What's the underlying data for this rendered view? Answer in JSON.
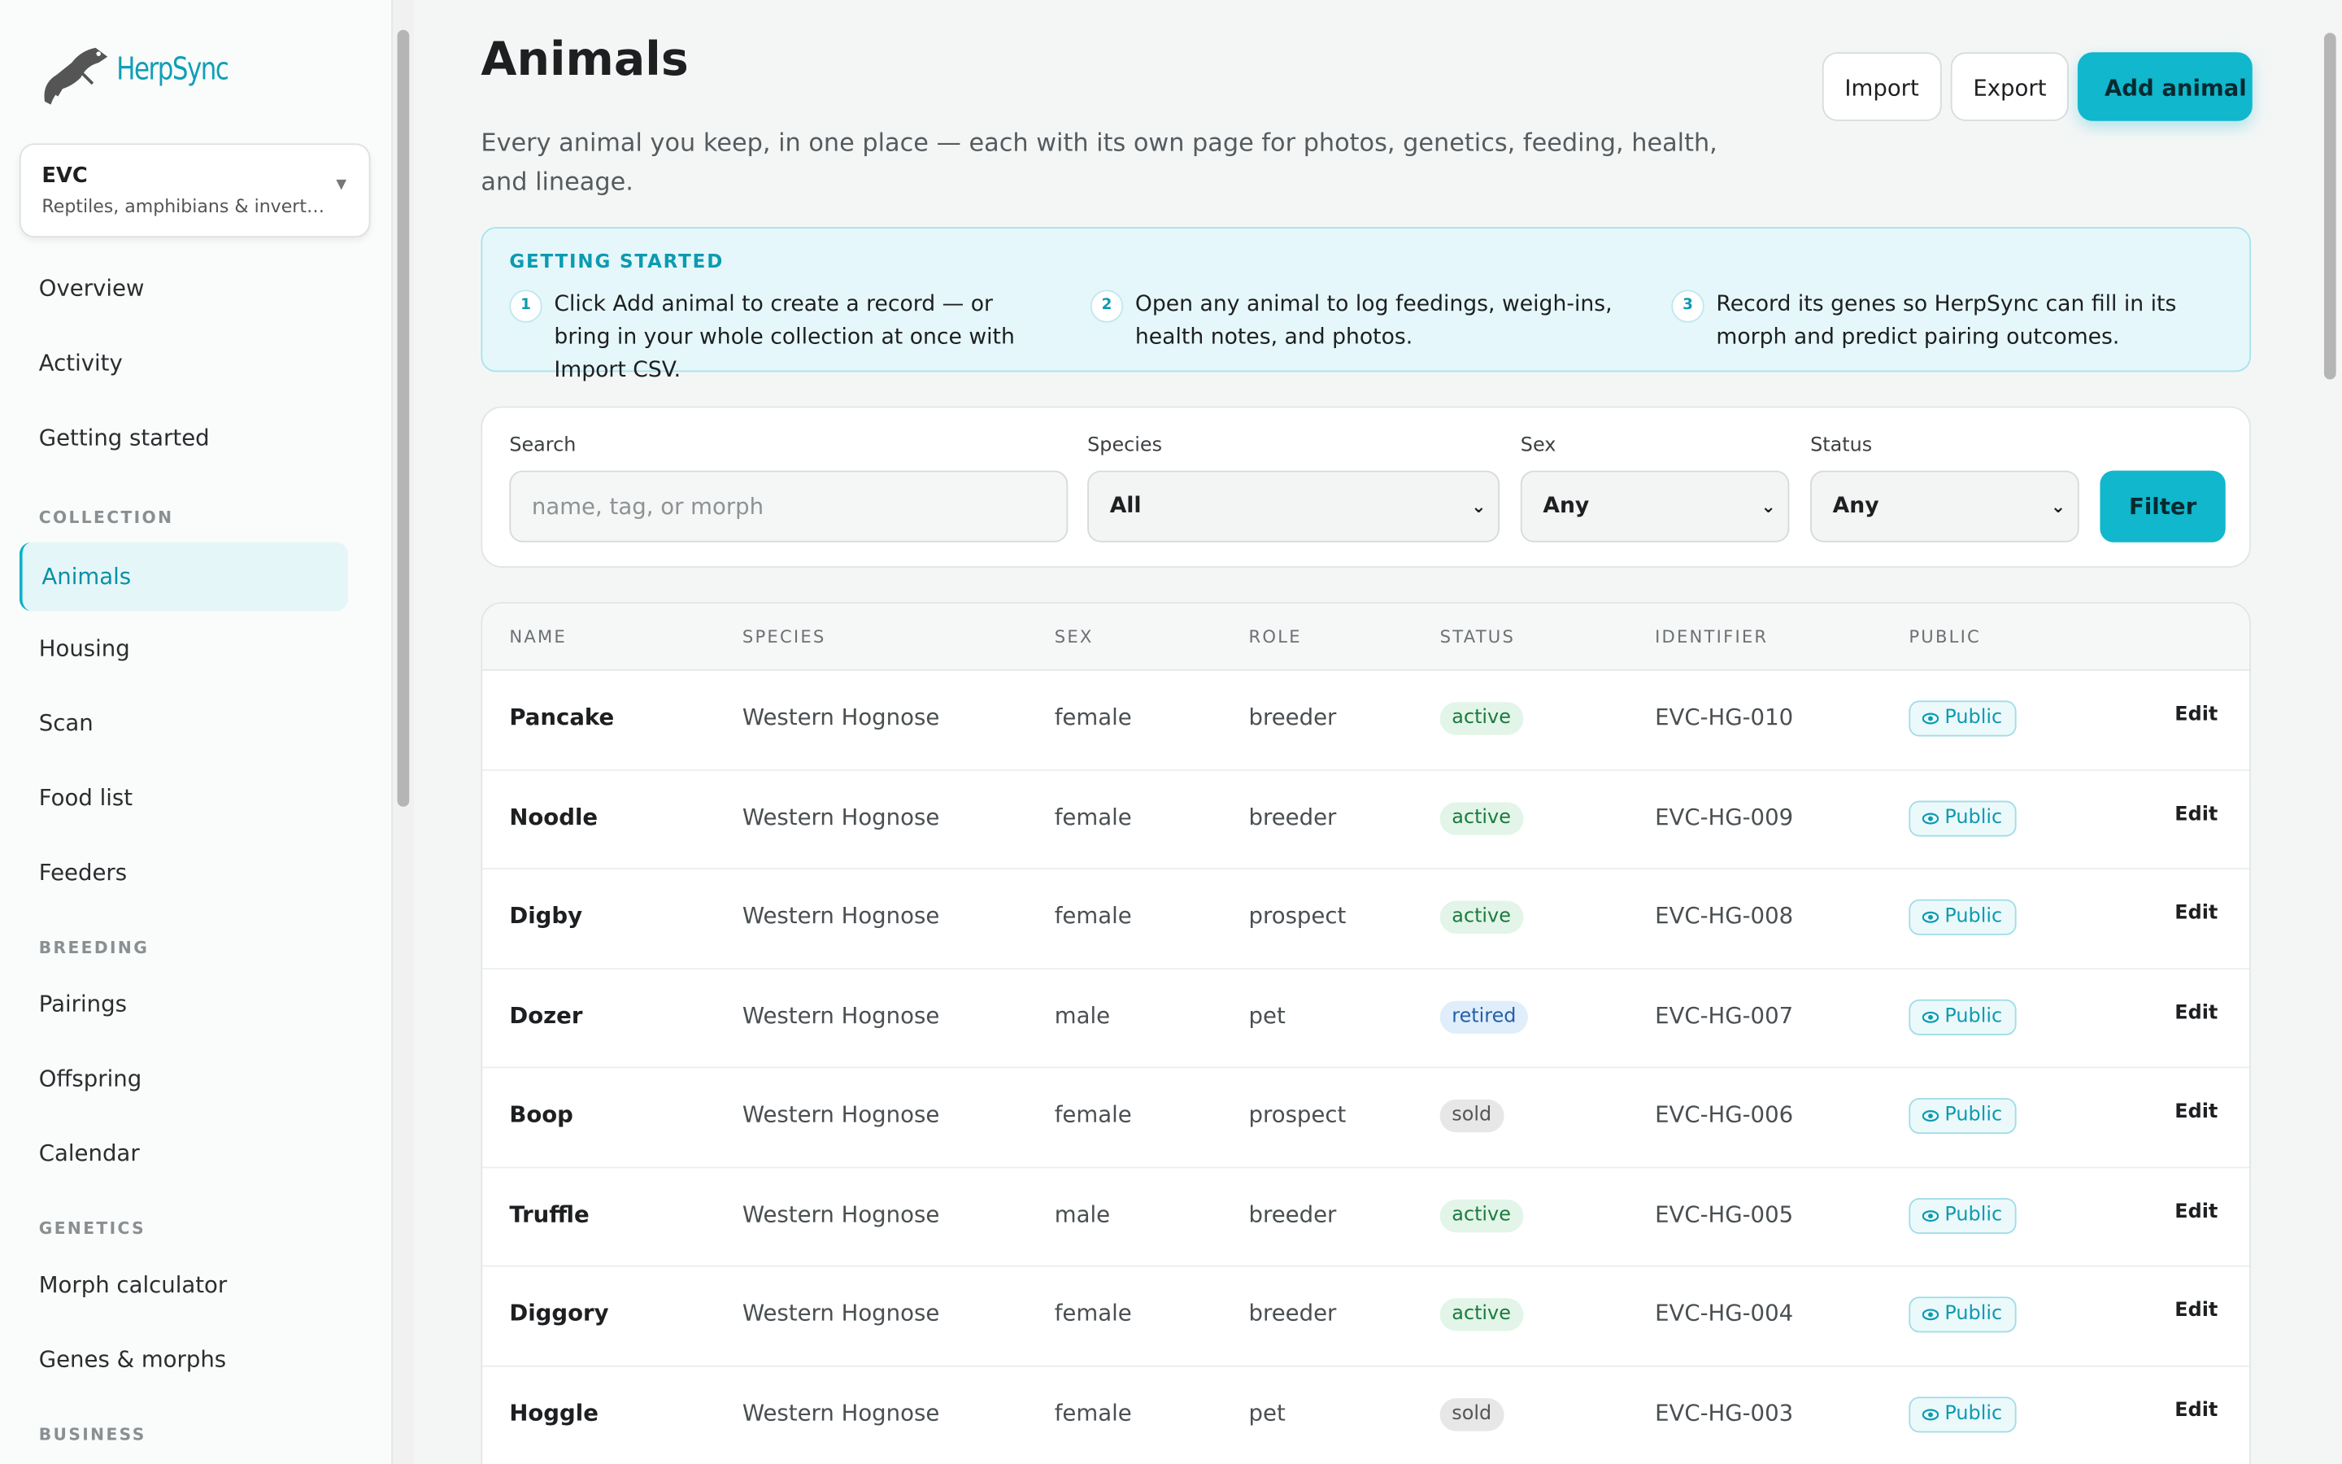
{
  "sidebar": {
    "brand": "HerpSync",
    "workspace": {
      "name": "EVC",
      "subtitle": "Reptiles, amphibians & invert…"
    },
    "top_items": [
      "Overview",
      "Activity",
      "Getting started"
    ],
    "sections": [
      {
        "title": "COLLECTION",
        "items": [
          "Animals",
          "Housing",
          "Scan",
          "Food list",
          "Feeders"
        ]
      },
      {
        "title": "BREEDING",
        "items": [
          "Pairings",
          "Offspring",
          "Calendar"
        ]
      },
      {
        "title": "GENETICS",
        "items": [
          "Morph calculator",
          "Genes & morphs"
        ]
      },
      {
        "title": "BUSINESS",
        "items": []
      }
    ]
  },
  "header": {
    "title": "Animals",
    "description": "Every animal you keep, in one place — each with its own page for photos, genetics, feeding, health, and lineage.",
    "buttons": [
      "Import",
      "Export",
      "Add animal"
    ]
  },
  "getting_started": {
    "title": "GETTING STARTED",
    "steps": [
      {
        "number": 1,
        "text": "Click Add animal to create a record — or bring in your whole collection at once with Import CSV."
      },
      {
        "number": 2,
        "text": "Open any animal to log feedings, weigh-ins, health notes, and photos."
      },
      {
        "number": 3,
        "text": "Record its genes so HerpSync can fill in its morph and predict pairing outcomes."
      }
    ]
  },
  "filters": {
    "fields": [
      {
        "label": "Search",
        "placeholder": "name, tag, or morph"
      },
      {
        "label": "Species",
        "value": "All"
      },
      {
        "label": "Sex",
        "value": "Any"
      },
      {
        "label": "Status",
        "value": "Any"
      }
    ],
    "button": "Filter"
  },
  "table": {
    "columns": [
      "NAME",
      "SPECIES",
      "SEX",
      "ROLE",
      "STATUS",
      "IDENTIFIER",
      "PUBLIC"
    ],
    "rows": [
      [
        "Pancake",
        "Western Hognose",
        "female",
        "breeder",
        "active",
        "EVC-HG-010",
        "Public",
        "Edit"
      ],
      [
        "Noodle",
        "Western Hognose",
        "female",
        "breeder",
        "active",
        "EVC-HG-009",
        "Public",
        "Edit"
      ],
      [
        "Digby",
        "Western Hognose",
        "female",
        "prospect",
        "active",
        "EVC-HG-008",
        "Public",
        "Edit"
      ],
      [
        "Dozer",
        "Western Hognose",
        "male",
        "pet",
        "retired",
        "EVC-HG-007",
        "Public",
        "Edit"
      ],
      [
        "Boop",
        "Western Hognose",
        "female",
        "prospect",
        "sold",
        "EVC-HG-006",
        "Public",
        "Edit"
      ],
      [
        "Truffle",
        "Western Hognose",
        "male",
        "breeder",
        "active",
        "EVC-HG-005",
        "Public",
        "Edit"
      ],
      [
        "Diggory",
        "Western Hognose",
        "female",
        "breeder",
        "active",
        "EVC-HG-004",
        "Public",
        "Edit"
      ],
      [
        "Hoggle",
        "Western Hognose",
        "female",
        "pet",
        "sold",
        "EVC-HG-003",
        "Public",
        "Edit"
      ]
    ]
  }
}
